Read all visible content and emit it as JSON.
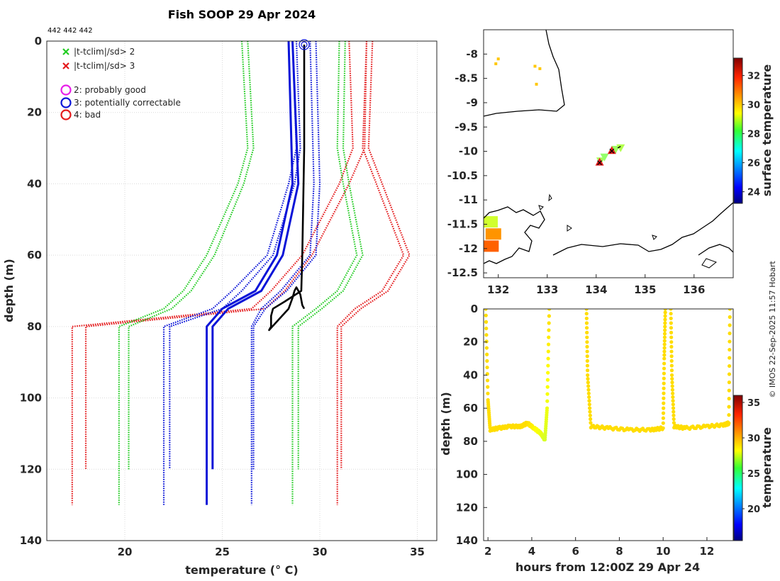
{
  "title": "Fish SOOP 29 Apr 2024",
  "subtitle_ids": "442 442 442",
  "credit": "© IMOS 22-Sep-2025 11:57 Hobart",
  "colors": {
    "red": "#e41a1c",
    "green": "#22cc22",
    "blue": "#0a14d8",
    "black": "#000000",
    "magenta": "#e81ee8",
    "yellow": "#e6e61a",
    "grid": "#d9d9d9"
  },
  "chart_data": [
    {
      "type": "line",
      "name": "profile",
      "xlabel": "temperature (° C)",
      "ylabel": "depth (m)",
      "xlim": [
        16,
        36
      ],
      "ylim": [
        0,
        140
      ],
      "xticks": [
        20,
        25,
        30,
        35
      ],
      "yticks": [
        0,
        20,
        40,
        60,
        80,
        100,
        120,
        140
      ],
      "legend": [
        {
          "label": "|t-tclim|/sd> 2",
          "marker": "x",
          "color": "#22cc22"
        },
        {
          "label": "|t-tclim|/sd> 3",
          "marker": "x",
          "color": "#e41a1c"
        },
        {
          "label": "2: probably good",
          "marker": "o",
          "color": "#e81ee8"
        },
        {
          "label": "3: potentially correctable",
          "marker": "o",
          "color": "#0a14d8"
        },
        {
          "label": "4: bad",
          "marker": "o",
          "color": "#e41a1c"
        }
      ],
      "series": [
        {
          "name": "clim -3sd",
          "color": "#e41a1c",
          "style": "dotted",
          "depth": [
            0,
            30,
            40,
            60,
            70,
            75,
            80,
            130
          ],
          "temp": [
            31.5,
            31.7,
            31.0,
            29.1,
            27.5,
            26.5,
            17.3,
            17.3
          ]
        },
        {
          "name": "clim -3sd b",
          "color": "#e41a1c",
          "style": "dotted",
          "depth": [
            0,
            30,
            40,
            60,
            70,
            75,
            80,
            120
          ],
          "temp": [
            32.4,
            32.3,
            31.5,
            29.6,
            28.2,
            27.2,
            18.0,
            18.0
          ]
        },
        {
          "name": "clim -2sd",
          "color": "#22cc22",
          "style": "dotted",
          "depth": [
            0,
            30,
            40,
            60,
            70,
            75,
            80,
            130
          ],
          "temp": [
            26.0,
            26.3,
            25.8,
            24.2,
            23.0,
            22.0,
            19.7,
            19.7
          ]
        },
        {
          "name": "clim -2sd b",
          "color": "#22cc22",
          "style": "dotted",
          "depth": [
            0,
            30,
            40,
            60,
            70,
            75,
            80,
            120
          ],
          "temp": [
            26.3,
            26.6,
            26.1,
            24.6,
            23.4,
            22.4,
            20.2,
            20.2
          ]
        },
        {
          "name": "clim -1sd",
          "color": "#0a14d8",
          "style": "dotted",
          "depth": [
            0,
            30,
            40,
            60,
            70,
            75,
            80,
            130
          ],
          "temp": [
            28.6,
            28.8,
            28.4,
            27.3,
            25.5,
            24.5,
            22.0,
            22.0
          ]
        },
        {
          "name": "clim -1sd b",
          "color": "#0a14d8",
          "style": "dotted",
          "depth": [
            0,
            30,
            40,
            60,
            70,
            75,
            80,
            120
          ],
          "temp": [
            28.8,
            29.0,
            28.7,
            27.6,
            26.0,
            25.0,
            22.3,
            22.3
          ]
        },
        {
          "name": "clim mean",
          "color": "#0a14d8",
          "style": "solid",
          "depth": [
            0,
            40,
            60,
            70,
            75,
            80,
            130
          ],
          "temp": [
            28.4,
            28.6,
            27.8,
            26.7,
            25.0,
            24.2,
            24.2
          ]
        },
        {
          "name": "clim mean b",
          "color": "#0a14d8",
          "style": "solid",
          "depth": [
            0,
            40,
            60,
            70,
            75,
            80,
            120
          ],
          "temp": [
            28.6,
            28.9,
            28.1,
            27.0,
            25.3,
            24.5,
            24.5
          ]
        },
        {
          "name": "clim +1sd",
          "color": "#0a14d8",
          "style": "dotted",
          "depth": [
            0,
            40,
            60,
            70,
            75,
            80,
            130
          ],
          "temp": [
            29.5,
            29.7,
            29.5,
            28.0,
            27.0,
            26.5,
            26.5
          ]
        },
        {
          "name": "clim +1sd b",
          "color": "#0a14d8",
          "style": "dotted",
          "depth": [
            0,
            40,
            60,
            70,
            75,
            80,
            120
          ],
          "temp": [
            29.8,
            30.0,
            29.8,
            28.3,
            27.2,
            26.6,
            26.6
          ]
        },
        {
          "name": "clim +2sd",
          "color": "#22cc22",
          "style": "dotted",
          "depth": [
            0,
            30,
            40,
            60,
            70,
            75,
            80,
            130
          ],
          "temp": [
            31.0,
            30.9,
            31.2,
            31.9,
            30.9,
            29.8,
            28.6,
            28.6
          ]
        },
        {
          "name": "clim +2sd b",
          "color": "#22cc22",
          "style": "dotted",
          "depth": [
            0,
            30,
            40,
            60,
            70,
            75,
            80,
            120
          ],
          "temp": [
            31.3,
            31.2,
            31.5,
            32.2,
            31.2,
            30.1,
            28.9,
            28.9
          ]
        },
        {
          "name": "clim +3sd",
          "color": "#e41a1c",
          "style": "dotted",
          "depth": [
            0,
            30,
            40,
            60,
            70,
            75,
            80,
            130
          ],
          "temp": [
            32.4,
            32.2,
            32.9,
            34.3,
            33.2,
            31.8,
            30.9,
            30.9
          ]
        },
        {
          "name": "clim +3sd b",
          "color": "#e41a1c",
          "style": "dotted",
          "depth": [
            0,
            30,
            40,
            60,
            70,
            75,
            80,
            120
          ],
          "temp": [
            32.7,
            32.5,
            33.2,
            34.6,
            33.5,
            32.1,
            31.1,
            31.1
          ]
        },
        {
          "name": "observed",
          "color": "#000000",
          "style": "solid",
          "depth": [
            1,
            30,
            60,
            70,
            73,
            75,
            77,
            80,
            81,
            78,
            75,
            72,
            70,
            69,
            71,
            74,
            75
          ],
          "temp": [
            29.2,
            29.2,
            29.1,
            29.05,
            28.2,
            27.6,
            27.5,
            27.5,
            27.4,
            27.9,
            28.4,
            28.6,
            28.7,
            28.8,
            29.0,
            29.1,
            29.2
          ]
        }
      ],
      "flag_marker": {
        "depth": 1,
        "temp": 29.2,
        "color": "#0a14d8"
      }
    },
    {
      "type": "scatter",
      "name": "map",
      "xlim": [
        131.7,
        136.8
      ],
      "ylim": [
        -12.6,
        -7.5
      ],
      "xticks": [
        132,
        133,
        134,
        135,
        136
      ],
      "yticks": [
        -8,
        -8.5,
        -9,
        -9.5,
        -10,
        -10.5,
        -11,
        -11.5,
        -12,
        -12.5
      ],
      "colorbar": {
        "label": "surface temperature",
        "min": 23.2,
        "max": 33.2,
        "ticks": [
          24,
          26,
          28,
          30,
          32
        ]
      },
      "track": [
        {
          "lon": 134.09,
          "lat": -10.2,
          "temp": 28.6
        },
        {
          "lon": 134.17,
          "lat": -10.12,
          "temp": 28.4
        },
        {
          "lon": 134.4,
          "lat": -9.96,
          "temp": 28.5
        },
        {
          "lon": 134.5,
          "lat": -9.93,
          "temp": 28.7
        }
      ],
      "flagged_points": [
        {
          "lon": 134.07,
          "lat": -10.22,
          "flag": "|t-tclim|/sd> 3"
        },
        {
          "lon": 134.32,
          "lat": -9.98,
          "flag": "|t-tclim|/sd> 3"
        }
      ],
      "sst_patches": [
        {
          "lon": 132.0,
          "lat": -8.1,
          "temp": 30.0
        },
        {
          "lon": 131.95,
          "lat": -8.2,
          "temp": 30.0
        },
        {
          "lon": 132.75,
          "lat": -8.25,
          "temp": 30.0
        },
        {
          "lon": 132.85,
          "lat": -8.3,
          "temp": 30.0
        },
        {
          "lon": 132.78,
          "lat": -8.62,
          "temp": 30.0
        },
        {
          "lon": 131.83,
          "lat": -11.45,
          "temp": 29.0
        },
        {
          "lon": 131.9,
          "lat": -11.7,
          "temp": 30.5
        },
        {
          "lon": 131.85,
          "lat": -11.95,
          "temp": 31.0
        }
      ]
    },
    {
      "type": "scatter",
      "name": "timeseries",
      "xlabel": "hours from 12:00Z 29 Apr 24",
      "ylabel": "depth (m)",
      "xlim": [
        1.8,
        13.2
      ],
      "ylim": [
        0,
        140
      ],
      "xticks": [
        2,
        4,
        6,
        8,
        10,
        12
      ],
      "yticks": [
        0,
        20,
        40,
        60,
        80,
        100,
        120,
        140
      ],
      "colorbar": {
        "label": "temperature",
        "min": 15.5,
        "max": 36,
        "ticks": [
          20,
          25,
          30,
          35
        ]
      },
      "segments": [
        {
          "hours": [
            1.9,
            2.0,
            2.1,
            2.5,
            3.0,
            3.5,
            3.8,
            4.1,
            4.4,
            4.6,
            4.7,
            4.8
          ],
          "depth": [
            0,
            55,
            73,
            72,
            71,
            71,
            69,
            72,
            75,
            79,
            60,
            0
          ],
          "temp": [
            29,
            29,
            29,
            29,
            29,
            29,
            29,
            28.5,
            28,
            27.5,
            28,
            29
          ]
        },
        {
          "hours": [
            6.5,
            6.55,
            6.7,
            7.5,
            8.5,
            9.5,
            10.0,
            10.05,
            10.1
          ],
          "depth": [
            0,
            40,
            71,
            72,
            73,
            73,
            72,
            30,
            0
          ],
          "temp": [
            29,
            29,
            29,
            29,
            29,
            29,
            29,
            29,
            29
          ]
        },
        {
          "hours": [
            10.35,
            10.4,
            10.5,
            11.0,
            12.0,
            12.8,
            13.0,
            13.05
          ],
          "depth": [
            0,
            40,
            71,
            72,
            71,
            70,
            69,
            0
          ],
          "temp": [
            29,
            29,
            29,
            29,
            29,
            29,
            29,
            29
          ]
        }
      ]
    }
  ]
}
